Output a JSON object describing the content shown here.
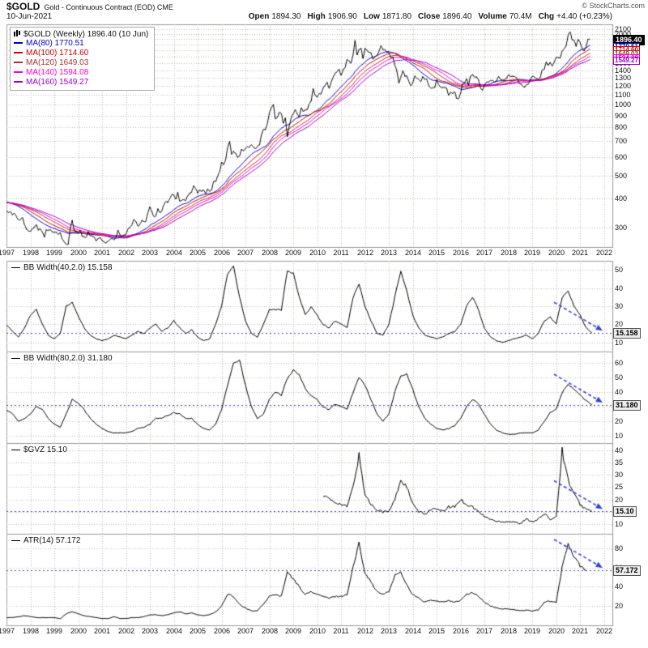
{
  "header": {
    "symbol": "$GOLD",
    "description": "Gold - Continuous Contract (EOD) CME",
    "copyright": "© StockCharts.com",
    "date": "10-Jun-2021",
    "quote": [
      {
        "label": "Open",
        "value": "1894.30"
      },
      {
        "label": "High",
        "value": "1906.90"
      },
      {
        "label": "Low",
        "value": "1871.80"
      },
      {
        "label": "Close",
        "value": "1896.40"
      },
      {
        "label": "Volume",
        "value": "70.4M"
      },
      {
        "label": "Chg",
        "value": "+4.40 (+0.23%)"
      }
    ]
  },
  "x_axis": {
    "ticks": [
      "1997",
      "1998",
      "1999",
      "2000",
      "2001",
      "2002",
      "2003",
      "2004",
      "2005",
      "2006",
      "2007",
      "2008",
      "2009",
      "2010",
      "2011",
      "2012",
      "2013",
      "2014",
      "2015",
      "2016",
      "2017",
      "2018",
      "2019",
      "2020",
      "2021",
      "2022"
    ]
  },
  "colors": {
    "price": "#000000",
    "grid": "#c0b8ac",
    "border": "#999999",
    "hline": "#4444bb",
    "arrow": "#3344cc"
  },
  "chart_data": [
    {
      "id": "price",
      "type": "line",
      "title": "$GOLD (Weekly) 1896.40 (10 Jun)",
      "scale": "log",
      "ylim": [
        248,
        2200
      ],
      "yticks": [
        300,
        400,
        500,
        600,
        700,
        800,
        900,
        1000,
        1100,
        1200,
        1300,
        1400,
        1500,
        1600,
        1700,
        1800,
        1900,
        2000,
        2100
      ],
      "last_value": "1896.40",
      "last_value_num": 1896.4,
      "show_hline": false,
      "arrow": false,
      "series": {
        "name": "$GOLD weekly close",
        "color": "#000000",
        "start": 1997.0,
        "per_year": 12,
        "pre_values": [
          330,
          328,
          337,
          342,
          360,
          371,
          392,
          371,
          355,
          364,
          373,
          383,
          386,
          381,
          384,
          377,
          381,
          385,
          385,
          380,
          391,
          389,
          384,
          379,
          378,
          376,
          392,
          390,
          385,
          387,
          386,
          383,
          383,
          382,
          385,
          387,
          400,
          404,
          396,
          392,
          391,
          385,
          383,
          387,
          383,
          381,
          377,
          369
        ],
        "values": [
          355,
          346,
          352,
          340,
          345,
          334,
          324,
          324,
          332,
          311,
          296,
          290,
          289,
          297,
          301,
          308,
          293,
          296,
          288,
          273,
          293,
          292,
          294,
          288,
          287,
          287,
          280,
          286,
          268,
          261,
          255,
          255,
          299,
          322,
          291,
          290,
          284,
          293,
          276,
          275,
          272,
          288,
          276,
          277,
          273,
          264,
          269,
          272,
          264,
          261,
          258,
          263,
          267,
          270,
          266,
          273,
          292,
          280,
          275,
          279,
          282,
          296,
          301,
          308,
          326,
          318,
          304,
          310,
          323,
          317,
          319,
          347,
          368,
          350,
          334,
          336,
          361,
          346,
          354,
          375,
          388,
          384,
          398,
          416,
          413,
          395,
          423,
          388,
          393,
          395,
          391,
          410,
          420,
          425,
          453,
          438,
          422,
          435,
          428,
          435,
          418,
          437,
          429,
          433,
          473,
          470,
          495,
          517,
          568,
          556,
          582,
          654,
          700,
          613,
          632,
          623,
          599,
          603,
          646,
          636,
          651,
          664,
          661,
          677,
          659,
          650,
          665,
          672,
          743,
          789,
          783,
          834,
          923,
          971,
          1002,
          871,
          885,
          930,
          918,
          833,
          884,
          730,
          814,
          884,
          919,
          952,
          916,
          883,
          975,
          934,
          953,
          955,
          1008,
          1040,
          1175,
          1096,
          1078,
          1118,
          1115,
          1179,
          1215,
          1244,
          1169,
          1246,
          1307,
          1359,
          1383,
          1421,
          1327,
          1411,
          1439,
          1556,
          1536,
          1500,
          1628,
          1880,
          1620,
          1722,
          1746,
          1566,
          1737,
          1711,
          1668,
          1664,
          1558,
          1604,
          1614,
          1691,
          1776,
          1719,
          1714,
          1675,
          1661,
          1588,
          1598,
          1476,
          1394,
          1234,
          1313,
          1395,
          1327,
          1323,
          1253,
          1202,
          1244,
          1326,
          1291,
          1288,
          1250,
          1315,
          1285,
          1287,
          1208,
          1173,
          1175,
          1184,
          1283,
          1213,
          1187,
          1180,
          1190,
          1172,
          1095,
          1135,
          1114,
          1142,
          1065,
          1060,
          1118,
          1234,
          1237,
          1290,
          1212,
          1322,
          1351,
          1309,
          1317,
          1277,
          1178,
          1150,
          1212,
          1248,
          1249,
          1266,
          1275,
          1242,
          1267,
          1321,
          1283,
          1271,
          1280,
          1291,
          1345,
          1318,
          1325,
          1315,
          1305,
          1253,
          1224,
          1206,
          1187,
          1215,
          1220,
          1281,
          1321,
          1313,
          1292,
          1283,
          1305,
          1409,
          1414,
          1520,
          1472,
          1511,
          1464,
          1517,
          1589,
          1586,
          1577,
          1686,
          1730,
          1781,
          1976,
          2050,
          1886,
          1879,
          1777,
          1895,
          1848,
          1734,
          1690,
          1768,
          1905,
          1896
        ]
      },
      "mas": [
        {
          "label": "MA(80) 1770.51",
          "last": "1770.51",
          "value": 1770.51,
          "window": 18,
          "color": "#0000cc"
        },
        {
          "label": "MA(100) 1714.60",
          "last": "1714.60",
          "value": 1714.6,
          "window": 23,
          "color": "#cc0000"
        },
        {
          "label": "MA(120) 1649.03",
          "last": "1649.03",
          "value": 1649.03,
          "window": 28,
          "color": "#aa3333"
        },
        {
          "label": "MA(140) 1594.08",
          "last": "1594.08",
          "value": 1594.08,
          "window": 32,
          "color": "#ff00cc"
        },
        {
          "label": "MA(160) 1549.27",
          "last": "1549.27",
          "value": 1549.27,
          "window": 37,
          "color": "#9900cc"
        }
      ]
    },
    {
      "id": "bbw40",
      "type": "line",
      "label": "BB Width(40,2.0) 15.158",
      "scale": "linear",
      "ylim": [
        5,
        55
      ],
      "yticks": [
        10,
        20,
        30,
        40,
        50
      ],
      "last_value": "15.158",
      "last_value_num": 15.158,
      "show_hline": true,
      "arrow": true,
      "series": {
        "name": "BB Width(40,2.0)",
        "color": "#000000",
        "start": 1997.0,
        "per_year": 4,
        "values": [
          20,
          16,
          13,
          18,
          25,
          28,
          20,
          14,
          12,
          15,
          30,
          32,
          25,
          18,
          14,
          12,
          11,
          12,
          14,
          13,
          12,
          14,
          16,
          15,
          18,
          20,
          16,
          18,
          22,
          18,
          15,
          17,
          13,
          11,
          12,
          20,
          30,
          48,
          52,
          35,
          22,
          15,
          13,
          20,
          28,
          28,
          28,
          50,
          48,
          35,
          25,
          30,
          25,
          20,
          18,
          22,
          20,
          18,
          35,
          42,
          30,
          22,
          15,
          14,
          20,
          35,
          50,
          38,
          25,
          18,
          14,
          13,
          12,
          13,
          15,
          16,
          20,
          30,
          35,
          28,
          18,
          13,
          11,
          10,
          11,
          12,
          13,
          14,
          12,
          15,
          22,
          24,
          20,
          35,
          38,
          30,
          25,
          18,
          15.158
        ]
      }
    },
    {
      "id": "bbw80",
      "type": "line",
      "label": "BB Width(80,2.0) 31.180",
      "scale": "linear",
      "ylim": [
        5,
        68
      ],
      "yticks": [
        10,
        20,
        30,
        40,
        50,
        60
      ],
      "last_value": "31.180",
      "last_value_num": 31.18,
      "show_hline": true,
      "arrow": true,
      "series": {
        "name": "BB Width(80,2.0)",
        "color": "#000000",
        "start": 1997.0,
        "per_year": 4,
        "values": [
          28,
          25,
          20,
          22,
          25,
          30,
          28,
          22,
          18,
          16,
          25,
          35,
          33,
          28,
          22,
          18,
          15,
          13,
          12,
          12,
          12,
          13,
          15,
          16,
          18,
          22,
          22,
          24,
          26,
          25,
          22,
          22,
          18,
          15,
          14,
          18,
          28,
          45,
          60,
          62,
          45,
          30,
          22,
          25,
          35,
          40,
          38,
          50,
          55,
          52,
          42,
          38,
          35,
          30,
          28,
          32,
          30,
          28,
          40,
          50,
          45,
          35,
          25,
          20,
          25,
          40,
          52,
          52,
          42,
          30,
          22,
          18,
          15,
          14,
          15,
          17,
          22,
          30,
          35,
          32,
          25,
          18,
          14,
          12,
          11,
          11,
          12,
          12,
          12,
          14,
          20,
          26,
          28,
          40,
          45,
          42,
          38,
          34,
          31.18
        ]
      }
    },
    {
      "id": "gvz",
      "type": "line",
      "label": "$GVZ 15.10",
      "scale": "linear",
      "ylim": [
        6,
        43
      ],
      "yticks": [
        10,
        15,
        20,
        25,
        30,
        35,
        40
      ],
      "last_value": "15.10",
      "last_value_num": 15.1,
      "show_hline": true,
      "arrow": true,
      "series": {
        "name": "$GVZ",
        "color": "#000000",
        "start": 2010.25,
        "per_year": 4,
        "values": [
          22,
          20,
          19,
          18,
          17,
          25,
          38,
          22,
          18,
          16,
          15,
          15,
          20,
          28,
          25,
          18,
          15,
          14,
          16,
          16,
          15,
          17,
          17,
          20,
          18,
          17,
          15,
          13,
          12,
          11,
          11,
          11,
          11,
          10,
          12,
          11,
          12,
          14,
          12,
          13,
          40,
          28,
          22,
          18,
          16,
          15.1
        ]
      }
    },
    {
      "id": "atr",
      "type": "line",
      "label": "ATR(14) 57.172",
      "scale": "linear",
      "ylim": [
        0,
        95
      ],
      "yticks": [
        20,
        40,
        60,
        80
      ],
      "last_value": "57.172",
      "last_value_num": 57.172,
      "show_hline": true,
      "arrow": true,
      "series": {
        "name": "ATR(14)",
        "color": "#000000",
        "start": 1997.0,
        "per_year": 4,
        "values": [
          8,
          8,
          9,
          10,
          9,
          8,
          8,
          8,
          8,
          7,
          12,
          14,
          12,
          10,
          9,
          8,
          7,
          7,
          9,
          7,
          7,
          8,
          8,
          9,
          11,
          11,
          10,
          11,
          13,
          14,
          12,
          13,
          11,
          10,
          11,
          14,
          20,
          32,
          30,
          22,
          18,
          15,
          15,
          22,
          30,
          32,
          30,
          55,
          48,
          40,
          32,
          35,
          32,
          30,
          28,
          30,
          30,
          32,
          60,
          85,
          55,
          45,
          35,
          32,
          35,
          52,
          55,
          42,
          32,
          28,
          24,
          26,
          25,
          24,
          26,
          24,
          26,
          32,
          34,
          30,
          24,
          20,
          18,
          17,
          17,
          16,
          15,
          16,
          15,
          16,
          24,
          25,
          24,
          60,
          85,
          70,
          62,
          57.172
        ]
      }
    }
  ]
}
